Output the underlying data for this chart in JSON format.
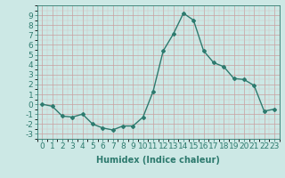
{
  "x": [
    0,
    1,
    2,
    3,
    4,
    5,
    6,
    7,
    8,
    9,
    10,
    11,
    12,
    13,
    14,
    15,
    16,
    17,
    18,
    19,
    20,
    21,
    22,
    23
  ],
  "y": [
    0.0,
    -0.2,
    -1.2,
    -1.3,
    -1.0,
    -2.0,
    -2.4,
    -2.6,
    -2.2,
    -2.2,
    -1.3,
    1.3,
    5.4,
    7.1,
    9.2,
    8.5,
    5.4,
    4.2,
    3.8,
    2.6,
    2.5,
    1.9,
    -0.7,
    -0.5
  ],
  "xlim": [
    -0.5,
    23.5
  ],
  "ylim": [
    -3.5,
    10
  ],
  "yticks": [
    -3,
    -2,
    -1,
    0,
    1,
    2,
    3,
    4,
    5,
    6,
    7,
    8,
    9
  ],
  "xticks": [
    0,
    1,
    2,
    3,
    4,
    5,
    6,
    7,
    8,
    9,
    10,
    11,
    12,
    13,
    14,
    15,
    16,
    17,
    18,
    19,
    20,
    21,
    22,
    23
  ],
  "xlabel": "Humidex (Indice chaleur)",
  "line_color": "#2d7a6e",
  "bg_color": "#cce8e5",
  "grid_major_color": "#c8a0a0",
  "grid_minor_color": "#d8c0c0",
  "marker": "D",
  "marker_size": 2.0,
  "linewidth": 1.0,
  "xlabel_fontsize": 7,
  "tick_fontsize": 6.5
}
